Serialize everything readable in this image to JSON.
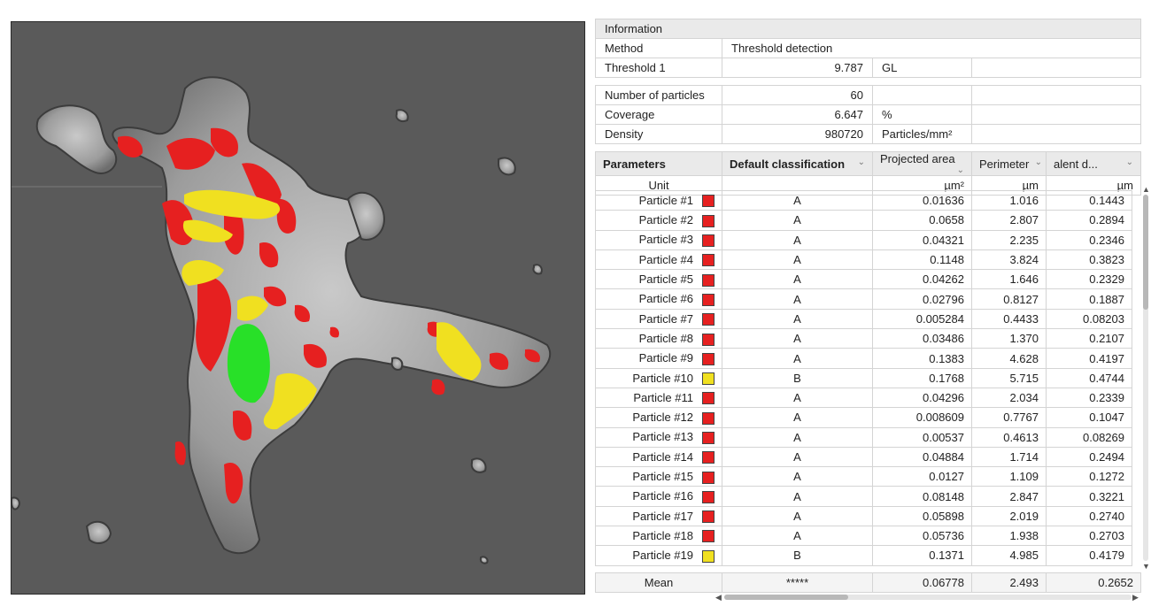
{
  "info": {
    "header": "Information",
    "method_label": "Method",
    "method_value": "Threshold detection",
    "threshold_label": "Threshold 1",
    "threshold_value": "9.787",
    "threshold_unit": "GL"
  },
  "stats": [
    {
      "label": "Number of particles",
      "value": "60",
      "unit": ""
    },
    {
      "label": "Coverage",
      "value": "6.647",
      "unit": "%"
    },
    {
      "label": "Density",
      "value": "980720",
      "unit": "Particles/mm²"
    }
  ],
  "columns": {
    "parameters": "Parameters",
    "classification": "Default classification",
    "area": "Projected area",
    "perimeter": "Perimeter",
    "diameter": "alent  d..."
  },
  "units": {
    "label": "Unit",
    "area": "µm²",
    "perimeter": "µm",
    "diameter": "µm"
  },
  "colors": {
    "A": "#e62020",
    "B": "#f0e020"
  },
  "particles": [
    {
      "name": "Particle #1",
      "cls": "A",
      "area": "0.01636",
      "perimeter": "1.016",
      "diameter": "0.1443"
    },
    {
      "name": "Particle #2",
      "cls": "A",
      "area": "0.0658",
      "perimeter": "2.807",
      "diameter": "0.2894"
    },
    {
      "name": "Particle #3",
      "cls": "A",
      "area": "0.04321",
      "perimeter": "2.235",
      "diameter": "0.2346"
    },
    {
      "name": "Particle #4",
      "cls": "A",
      "area": "0.1148",
      "perimeter": "3.824",
      "diameter": "0.3823"
    },
    {
      "name": "Particle #5",
      "cls": "A",
      "area": "0.04262",
      "perimeter": "1.646",
      "diameter": "0.2329"
    },
    {
      "name": "Particle #6",
      "cls": "A",
      "area": "0.02796",
      "perimeter": "0.8127",
      "diameter": "0.1887"
    },
    {
      "name": "Particle #7",
      "cls": "A",
      "area": "0.005284",
      "perimeter": "0.4433",
      "diameter": "0.08203"
    },
    {
      "name": "Particle #8",
      "cls": "A",
      "area": "0.03486",
      "perimeter": "1.370",
      "diameter": "0.2107"
    },
    {
      "name": "Particle #9",
      "cls": "A",
      "area": "0.1383",
      "perimeter": "4.628",
      "diameter": "0.4197"
    },
    {
      "name": "Particle #10",
      "cls": "B",
      "area": "0.1768",
      "perimeter": "5.715",
      "diameter": "0.4744"
    },
    {
      "name": "Particle #11",
      "cls": "A",
      "area": "0.04296",
      "perimeter": "2.034",
      "diameter": "0.2339"
    },
    {
      "name": "Particle #12",
      "cls": "A",
      "area": "0.008609",
      "perimeter": "0.7767",
      "diameter": "0.1047"
    },
    {
      "name": "Particle #13",
      "cls": "A",
      "area": "0.00537",
      "perimeter": "0.4613",
      "diameter": "0.08269"
    },
    {
      "name": "Particle #14",
      "cls": "A",
      "area": "0.04884",
      "perimeter": "1.714",
      "diameter": "0.2494"
    },
    {
      "name": "Particle #15",
      "cls": "A",
      "area": "0.0127",
      "perimeter": "1.109",
      "diameter": "0.1272"
    },
    {
      "name": "Particle #16",
      "cls": "A",
      "area": "0.08148",
      "perimeter": "2.847",
      "diameter": "0.3221"
    },
    {
      "name": "Particle #17",
      "cls": "A",
      "area": "0.05898",
      "perimeter": "2.019",
      "diameter": "0.2740"
    },
    {
      "name": "Particle #18",
      "cls": "A",
      "area": "0.05736",
      "perimeter": "1.938",
      "diameter": "0.2703"
    },
    {
      "name": "Particle #19",
      "cls": "B",
      "area": "0.1371",
      "perimeter": "4.985",
      "diameter": "0.4179"
    }
  ],
  "mean": {
    "label": "Mean",
    "cls": "*****",
    "area": "0.06778",
    "perimeter": "2.493",
    "diameter": "0.2652"
  }
}
